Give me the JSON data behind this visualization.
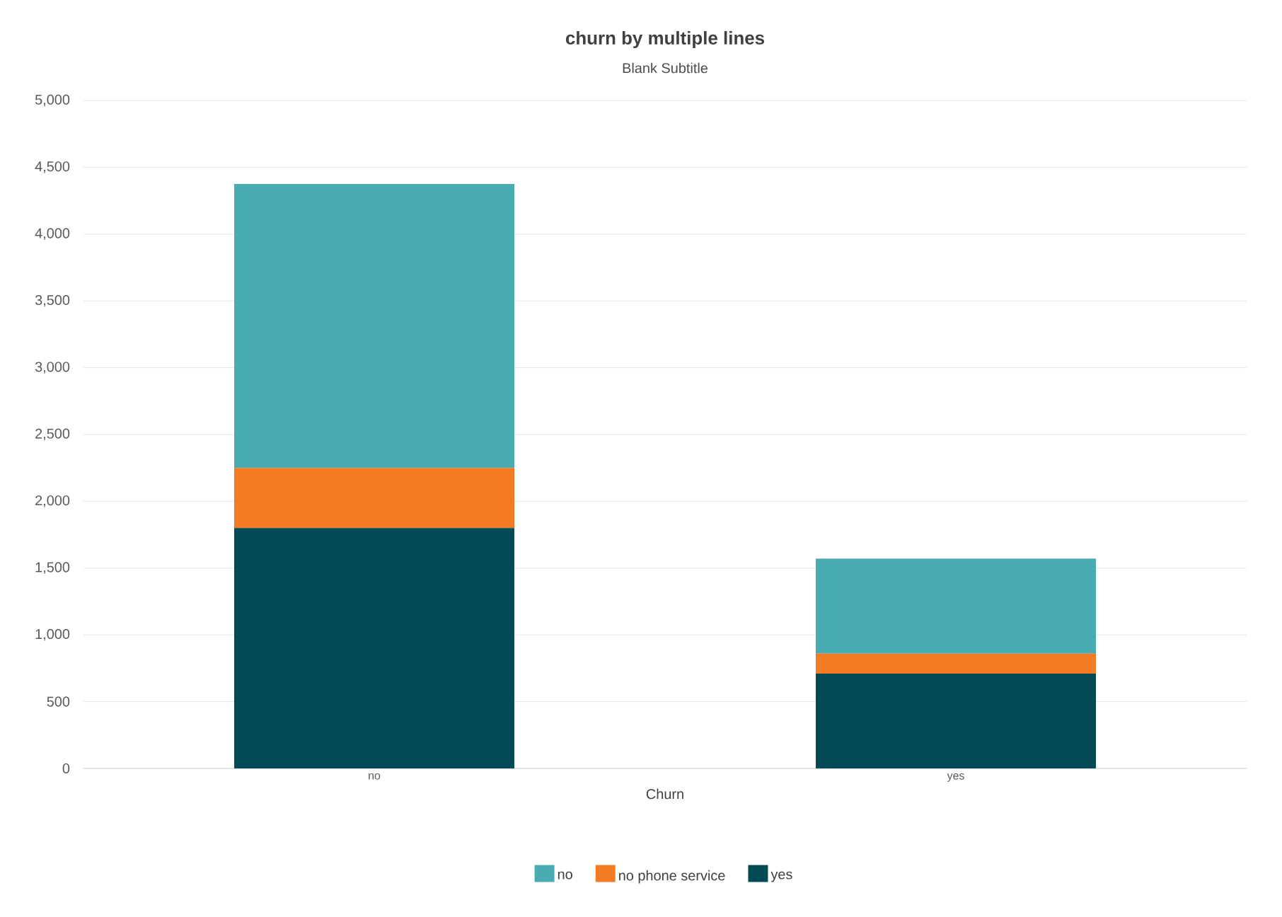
{
  "chart_data": {
    "type": "bar",
    "title": "churn by multiple lines",
    "subtitle": "Blank Subtitle",
    "xlabel": "Churn",
    "categories": [
      "no",
      "yes"
    ],
    "stacked": true,
    "series": [
      {
        "name": "yes",
        "color": "#024a56",
        "values": [
          1800,
          710
        ]
      },
      {
        "name": "no phone service",
        "color": "#f27b24",
        "values": [
          450,
          150
        ]
      },
      {
        "name": "no",
        "color": "#48acb2",
        "values": [
          2125,
          710
        ]
      }
    ],
    "ylim": [
      0,
      5000
    ],
    "yticks": [
      {
        "value": 0,
        "label": "0"
      },
      {
        "value": 500,
        "label": "500"
      },
      {
        "value": 1000,
        "label": "1,000"
      },
      {
        "value": 1500,
        "label": "1,500"
      },
      {
        "value": 2000,
        "label": "2,000"
      },
      {
        "value": 2500,
        "label": "2,500"
      },
      {
        "value": 3000,
        "label": "3,000"
      },
      {
        "value": 3500,
        "label": "3,500"
      },
      {
        "value": 4000,
        "label": "4,000"
      },
      {
        "value": 4500,
        "label": "4,500"
      },
      {
        "value": 5000,
        "label": "5,000"
      }
    ],
    "grid": "y",
    "legend": "bottom"
  }
}
